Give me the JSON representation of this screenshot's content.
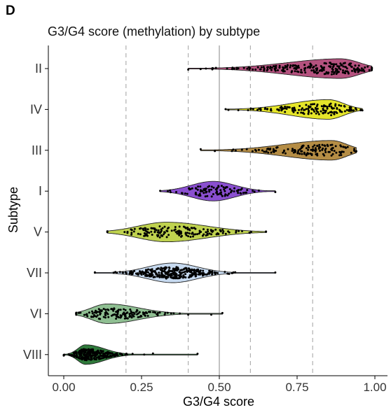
{
  "panel_label": "D",
  "chart_data": {
    "type": "violin",
    "title": "G3/G4 score (methylation) by subtype",
    "xlabel": "G3/G4 score",
    "ylabel": "Subtype",
    "xlim": [
      -0.05,
      1.02
    ],
    "x_ticks": [
      0.0,
      0.25,
      0.5,
      0.75,
      1.0
    ],
    "x_tick_labels": [
      "0.00",
      "0.25",
      "0.50",
      "0.75",
      "1.00"
    ],
    "reference_lines": {
      "solid": [
        0.5
      ],
      "dashed": [
        0.2,
        0.4,
        0.6,
        0.8
      ]
    },
    "grid": false,
    "categories": [
      "II",
      "IV",
      "III",
      "I",
      "V",
      "VII",
      "VI",
      "VIII"
    ],
    "series": [
      {
        "subtype": "II",
        "color": "#b5527f",
        "min": 0.4,
        "max": 0.99,
        "mode": 0.89,
        "spread_low": 0.17,
        "spread_high": 0.06,
        "n": 230
      },
      {
        "subtype": "IV",
        "color": "#e6e62a",
        "min": 0.52,
        "max": 0.96,
        "mode": 0.85,
        "spread_low": 0.12,
        "spread_high": 0.05,
        "n": 150
      },
      {
        "subtype": "III",
        "color": "#b58d45",
        "min": 0.44,
        "max": 0.94,
        "mode": 0.86,
        "spread_low": 0.15,
        "spread_high": 0.05,
        "n": 140
      },
      {
        "subtype": "I",
        "color": "#8a4fd0",
        "min": 0.31,
        "max": 0.68,
        "mode": 0.48,
        "spread_low": 0.07,
        "spread_high": 0.07,
        "n": 100
      },
      {
        "subtype": "V",
        "color": "#bfd24f",
        "min": 0.14,
        "max": 0.65,
        "mode": 0.33,
        "spread_low": 0.09,
        "spread_high": 0.13,
        "n": 160
      },
      {
        "subtype": "VII",
        "color": "#c7daf0",
        "min": 0.1,
        "max": 0.68,
        "mode": 0.35,
        "spread_low": 0.08,
        "spread_high": 0.08,
        "n": 330
      },
      {
        "subtype": "VI",
        "color": "#8fbf92",
        "min": 0.04,
        "max": 0.51,
        "mode": 0.14,
        "spread_low": 0.05,
        "spread_high": 0.1,
        "n": 150
      },
      {
        "subtype": "VIII",
        "color": "#2f7a3b",
        "min": 0.0,
        "max": 0.43,
        "mode": 0.07,
        "spread_low": 0.025,
        "spread_high": 0.06,
        "n": 260
      }
    ]
  }
}
